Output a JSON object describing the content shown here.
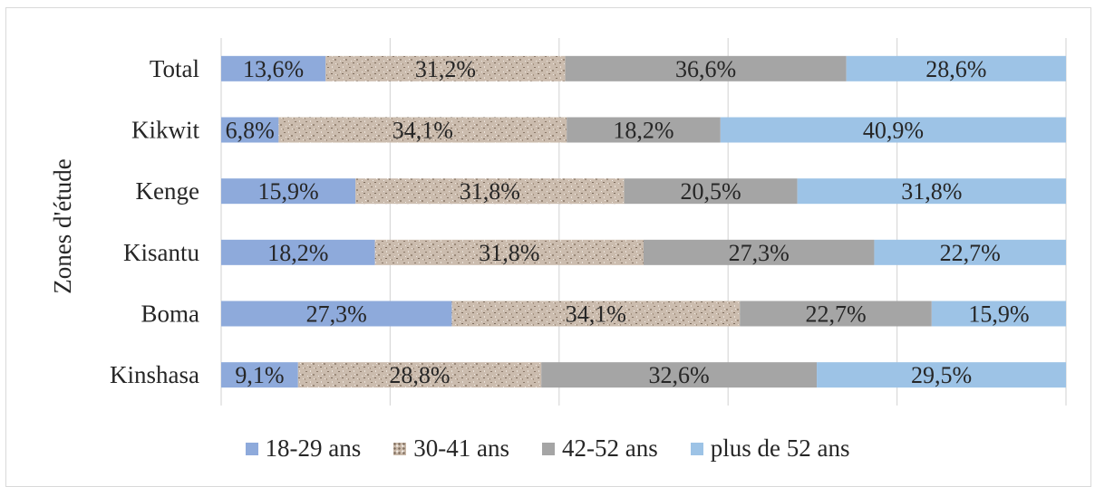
{
  "chart_data": {
    "type": "bar",
    "orientation": "horizontal",
    "stacked": "100%",
    "categories": [
      "Total",
      "Kikwit",
      "Kenge",
      "Kisantu",
      "Boma",
      "Kinshasa"
    ],
    "ylabel": "Zones d'étude",
    "series": [
      {
        "name": "18-29 ans",
        "color": "#8eaadb",
        "values": [
          13.6,
          6.8,
          15.9,
          18.2,
          27.3,
          9.1
        ],
        "labels": [
          "13,6%",
          "6,8%",
          "15,9%",
          "18,2%",
          "27,3%",
          "9,1%"
        ]
      },
      {
        "name": "30-41 ans",
        "color": "#c9b8a8",
        "pattern": "granite",
        "values": [
          31.2,
          34.1,
          31.8,
          31.8,
          34.1,
          28.8
        ],
        "labels": [
          "31,2%",
          "34,1%",
          "31,8%",
          "31,8%",
          "34,1%",
          "28,8%"
        ]
      },
      {
        "name": "42-52 ans",
        "color": "#a5a5a5",
        "values": [
          36.6,
          18.2,
          20.5,
          27.3,
          22.7,
          32.6
        ],
        "labels": [
          "36,6%",
          "18,2%",
          "20,5%",
          "27,3%",
          "22,7%",
          "32,6%"
        ]
      },
      {
        "name": "plus de 52 ans",
        "color": "#9dc3e6",
        "values": [
          28.6,
          40.9,
          31.8,
          22.7,
          15.9,
          29.5
        ],
        "labels": [
          "28,6%",
          "40,9%",
          "31,8%",
          "22,7%",
          "15,9%",
          "29,5%"
        ]
      }
    ],
    "xlim": [
      0,
      100
    ],
    "grid": true,
    "legend_position": "bottom"
  }
}
